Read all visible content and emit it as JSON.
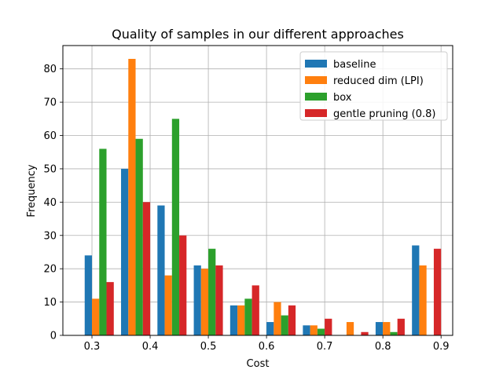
{
  "chart_data": {
    "type": "bar",
    "title": "Quality of samples in our different approaches",
    "xlabel": "Cost",
    "ylabel": "Frequency",
    "xlim": [
      0.25,
      0.92
    ],
    "ylim": [
      0,
      87
    ],
    "xticks": [
      "0.3",
      "0.4",
      "0.5",
      "0.6",
      "0.7",
      "0.8",
      "0.9"
    ],
    "yticks": [
      "0",
      "10",
      "20",
      "30",
      "40",
      "50",
      "60",
      "70",
      "80"
    ],
    "grid": true,
    "legend_position": "upper right",
    "bin_centers": [
      0.3125,
      0.375,
      0.4375,
      0.5,
      0.5625,
      0.625,
      0.6875,
      0.75,
      0.8125,
      0.875
    ],
    "bin_width": 0.0625,
    "series": [
      {
        "name": "baseline",
        "color": "#1f77b4",
        "values": [
          24,
          50,
          39,
          21,
          9,
          4,
          3,
          0,
          4,
          27
        ]
      },
      {
        "name": "reduced dim (LPI)",
        "color": "#ff7f0e",
        "values": [
          11,
          83,
          18,
          20,
          9,
          10,
          3,
          4,
          4,
          21
        ]
      },
      {
        "name": "box",
        "color": "#2ca02c",
        "values": [
          56,
          59,
          65,
          26,
          11,
          6,
          2,
          0,
          1,
          0
        ]
      },
      {
        "name": "gentle pruning (0.8)",
        "color": "#d62728",
        "values": [
          16,
          40,
          30,
          21,
          15,
          9,
          5,
          1,
          5,
          26
        ]
      }
    ]
  }
}
